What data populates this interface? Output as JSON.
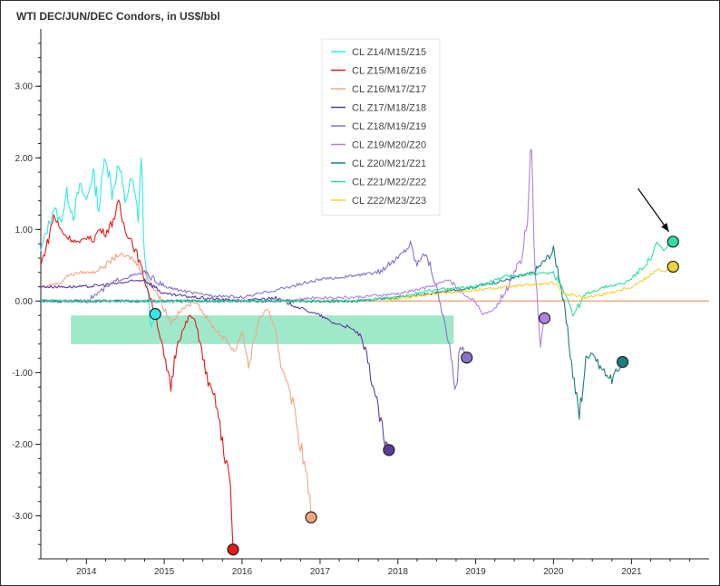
{
  "chart_data": {
    "type": "line",
    "title": "WTI DEC/JUN/DEC Condors, in US$/bbl",
    "xlabel": "",
    "ylabel": "",
    "x_range": [
      "2013-06-01",
      "2021-12-31"
    ],
    "ylim": [
      -3.6,
      3.8
    ],
    "x_ticks": [
      "2014",
      "2015",
      "2016",
      "2017",
      "2018",
      "2019",
      "2020",
      "2021"
    ],
    "y_ticks": [
      "3.00",
      "2.00",
      "1.00",
      "0.00",
      "-1.00",
      "-2.00",
      "-3.00"
    ],
    "y_tick_values": [
      3,
      2,
      1,
      0,
      -1,
      -2,
      -3
    ],
    "legend_position": "top-center",
    "grid": false,
    "zero_line_color": "#f4a582",
    "highlight_band": {
      "color": "#7fe0b8",
      "x": [
        "2013-10-20",
        "2018-09-20"
      ],
      "y": [
        -0.6,
        -0.2
      ]
    },
    "arrow": {
      "from": [
        "2021-02-01",
        1.57
      ],
      "to": [
        "2021-06-25",
        0.97
      ]
    },
    "series": [
      {
        "name": "CL Z14/M15/Z15",
        "color": "#33e8e8",
        "expiry": "2014-11-20",
        "final": -0.18,
        "points": [
          [
            "2013-06-01",
            0.7
          ],
          [
            "2013-07-01",
            1.0
          ],
          [
            "2013-08-01",
            1.3
          ],
          [
            "2013-09-01",
            1.1
          ],
          [
            "2013-10-01",
            1.5
          ],
          [
            "2013-11-01",
            1.2
          ],
          [
            "2013-12-01",
            1.6
          ],
          [
            "2014-01-01",
            1.4
          ],
          [
            "2014-02-01",
            1.8
          ],
          [
            "2014-03-01",
            1.3
          ],
          [
            "2014-04-01",
            2.1
          ],
          [
            "2014-05-01",
            1.5
          ],
          [
            "2014-06-01",
            1.9
          ],
          [
            "2014-07-01",
            1.4
          ],
          [
            "2014-08-01",
            1.7
          ],
          [
            "2014-09-01",
            1.2
          ],
          [
            "2014-09-15",
            2.0
          ],
          [
            "2014-10-01",
            0.6
          ],
          [
            "2014-10-15",
            0.2
          ],
          [
            "2014-11-01",
            -0.4
          ],
          [
            "2014-11-20",
            -0.18
          ]
        ]
      },
      {
        "name": "CL Z15/M16/Z16",
        "color": "#e41a1c",
        "expiry": "2015-11-20",
        "final": -3.47,
        "points": [
          [
            "2013-06-01",
            0.5
          ],
          [
            "2013-07-01",
            0.8
          ],
          [
            "2013-08-01",
            1.2
          ],
          [
            "2013-09-01",
            1.0
          ],
          [
            "2013-10-01",
            0.9
          ],
          [
            "2013-11-01",
            0.85
          ],
          [
            "2013-12-01",
            0.8
          ],
          [
            "2014-01-01",
            0.9
          ],
          [
            "2014-02-01",
            0.85
          ],
          [
            "2014-03-01",
            1.0
          ],
          [
            "2014-04-01",
            0.95
          ],
          [
            "2014-05-01",
            1.1
          ],
          [
            "2014-06-01",
            1.35
          ],
          [
            "2014-07-01",
            1.0
          ],
          [
            "2014-08-01",
            0.85
          ],
          [
            "2014-09-01",
            0.6
          ],
          [
            "2014-10-01",
            0.3
          ],
          [
            "2014-11-01",
            0.0
          ],
          [
            "2014-12-01",
            -0.3
          ],
          [
            "2015-01-01",
            -0.8
          ],
          [
            "2015-02-01",
            -1.2
          ],
          [
            "2015-03-01",
            -0.6
          ],
          [
            "2015-04-01",
            -0.4
          ],
          [
            "2015-05-01",
            -0.2
          ],
          [
            "2015-06-01",
            -0.3
          ],
          [
            "2015-07-01",
            -0.8
          ],
          [
            "2015-08-01",
            -1.2
          ],
          [
            "2015-09-01",
            -1.4
          ],
          [
            "2015-10-01",
            -2.0
          ],
          [
            "2015-11-01",
            -2.4
          ],
          [
            "2015-11-20",
            -3.47
          ]
        ]
      },
      {
        "name": "CL Z16/M17/Z17",
        "color": "#f4a582",
        "expiry": "2016-11-20",
        "final": -3.02,
        "points": [
          [
            "2013-06-01",
            0.2
          ],
          [
            "2013-09-01",
            0.25
          ],
          [
            "2013-10-01",
            0.35
          ],
          [
            "2013-12-01",
            0.4
          ],
          [
            "2014-02-01",
            0.4
          ],
          [
            "2014-04-01",
            0.5
          ],
          [
            "2014-06-01",
            0.65
          ],
          [
            "2014-08-01",
            0.6
          ],
          [
            "2014-10-01",
            0.4
          ],
          [
            "2014-12-01",
            0.1
          ],
          [
            "2015-02-01",
            -0.3
          ],
          [
            "2015-04-01",
            -0.1
          ],
          [
            "2015-06-01",
            0.0
          ],
          [
            "2015-08-01",
            -0.3
          ],
          [
            "2015-10-01",
            -0.5
          ],
          [
            "2015-12-01",
            -0.7
          ],
          [
            "2016-01-01",
            -0.4
          ],
          [
            "2016-02-01",
            -0.9
          ],
          [
            "2016-03-01",
            -0.5
          ],
          [
            "2016-04-01",
            -0.2
          ],
          [
            "2016-05-01",
            -0.1
          ],
          [
            "2016-06-01",
            -0.4
          ],
          [
            "2016-07-01",
            -0.9
          ],
          [
            "2016-08-01",
            -1.1
          ],
          [
            "2016-09-01",
            -1.5
          ],
          [
            "2016-10-01",
            -2.0
          ],
          [
            "2016-11-01",
            -2.5
          ],
          [
            "2016-11-20",
            -3.02
          ]
        ]
      },
      {
        "name": "CL Z17/M18/Z18",
        "color": "#5e3c99",
        "expiry": "2017-11-20",
        "final": -2.08,
        "points": [
          [
            "2013-06-01",
            0.2
          ],
          [
            "2014-01-01",
            0.2
          ],
          [
            "2014-06-01",
            0.25
          ],
          [
            "2014-10-01",
            0.3
          ],
          [
            "2015-01-01",
            0.1
          ],
          [
            "2015-06-01",
            0.05
          ],
          [
            "2016-01-01",
            0.0
          ],
          [
            "2016-06-01",
            0.05
          ],
          [
            "2016-10-01",
            -0.1
          ],
          [
            "2017-01-01",
            -0.2
          ],
          [
            "2017-03-01",
            -0.3
          ],
          [
            "2017-05-01",
            -0.35
          ],
          [
            "2017-07-01",
            -0.45
          ],
          [
            "2017-08-01",
            -0.7
          ],
          [
            "2017-09-01",
            -1.1
          ],
          [
            "2017-10-01",
            -1.5
          ],
          [
            "2017-11-01",
            -2.0
          ],
          [
            "2017-11-20",
            -2.08
          ]
        ]
      },
      {
        "name": "CL Z18/M19/Z19",
        "color": "#8a72c9",
        "expiry": "2018-11-20",
        "final": -0.79,
        "points": [
          [
            "2013-06-01",
            0.0
          ],
          [
            "2014-01-01",
            0.0
          ],
          [
            "2014-06-01",
            0.3
          ],
          [
            "2014-10-01",
            0.4
          ],
          [
            "2015-01-01",
            0.2
          ],
          [
            "2015-06-01",
            0.1
          ],
          [
            "2016-01-01",
            0.05
          ],
          [
            "2016-06-01",
            0.15
          ],
          [
            "2017-01-01",
            0.3
          ],
          [
            "2017-06-01",
            0.35
          ],
          [
            "2017-10-01",
            0.4
          ],
          [
            "2018-01-01",
            0.6
          ],
          [
            "2018-03-01",
            0.8
          ],
          [
            "2018-04-01",
            0.5
          ],
          [
            "2018-05-01",
            0.7
          ],
          [
            "2018-06-01",
            0.5
          ],
          [
            "2018-07-01",
            0.2
          ],
          [
            "2018-08-01",
            -0.2
          ],
          [
            "2018-09-01",
            -0.7
          ],
          [
            "2018-10-01",
            -1.3
          ],
          [
            "2018-10-20",
            -0.6
          ],
          [
            "2018-11-20",
            -0.79
          ]
        ]
      },
      {
        "name": "CL Z19/M20/Z20",
        "color": "#b37fe0",
        "expiry": "2019-11-20",
        "final": -0.24,
        "points": [
          [
            "2013-06-01",
            0.0
          ],
          [
            "2015-01-01",
            0.0
          ],
          [
            "2016-06-01",
            0.0
          ],
          [
            "2017-01-01",
            0.05
          ],
          [
            "2017-06-01",
            0.05
          ],
          [
            "2018-01-01",
            0.1
          ],
          [
            "2018-06-01",
            0.2
          ],
          [
            "2018-09-01",
            0.3
          ],
          [
            "2018-11-01",
            0.1
          ],
          [
            "2019-01-01",
            0.0
          ],
          [
            "2019-02-01",
            -0.2
          ],
          [
            "2019-04-01",
            -0.1
          ],
          [
            "2019-06-01",
            0.2
          ],
          [
            "2019-08-01",
            0.6
          ],
          [
            "2019-09-01",
            1.1
          ],
          [
            "2019-09-15",
            2.35
          ],
          [
            "2019-10-01",
            0.8
          ],
          [
            "2019-10-15",
            0.1
          ],
          [
            "2019-11-01",
            -0.6
          ],
          [
            "2019-11-20",
            -0.24
          ]
        ]
      },
      {
        "name": "CL Z20/M21/Z21",
        "color": "#1b7f7f",
        "expiry": "2020-11-20",
        "final": -0.85,
        "points": [
          [
            "2013-06-01",
            0.0
          ],
          [
            "2016-01-01",
            0.0
          ],
          [
            "2017-06-01",
            0.0
          ],
          [
            "2018-01-01",
            0.05
          ],
          [
            "2018-06-01",
            0.1
          ],
          [
            "2019-01-01",
            0.2
          ],
          [
            "2019-06-01",
            0.3
          ],
          [
            "2019-10-01",
            0.4
          ],
          [
            "2020-01-01",
            0.7
          ],
          [
            "2020-02-01",
            0.3
          ],
          [
            "2020-03-01",
            -0.3
          ],
          [
            "2020-04-01",
            -1.0
          ],
          [
            "2020-05-01",
            -1.6
          ],
          [
            "2020-06-01",
            -0.8
          ],
          [
            "2020-07-01",
            -0.7
          ],
          [
            "2020-08-01",
            -0.9
          ],
          [
            "2020-09-01",
            -1.0
          ],
          [
            "2020-10-01",
            -1.1
          ],
          [
            "2020-11-01",
            -0.95
          ],
          [
            "2020-11-20",
            -0.85
          ]
        ]
      },
      {
        "name": "CL Z21/M22/Z22",
        "color": "#2ee0a0",
        "expiry": "2021-07-15",
        "final": 0.83,
        "points": [
          [
            "2013-06-01",
            0.0
          ],
          [
            "2017-06-01",
            0.0
          ],
          [
            "2018-01-01",
            0.05
          ],
          [
            "2018-06-01",
            0.15
          ],
          [
            "2019-01-01",
            0.2
          ],
          [
            "2019-06-01",
            0.35
          ],
          [
            "2020-01-01",
            0.4
          ],
          [
            "2020-03-01",
            0.1
          ],
          [
            "2020-04-01",
            -0.2
          ],
          [
            "2020-06-01",
            0.1
          ],
          [
            "2020-09-01",
            0.2
          ],
          [
            "2020-12-01",
            0.25
          ],
          [
            "2021-02-01",
            0.4
          ],
          [
            "2021-04-01",
            0.6
          ],
          [
            "2021-05-01",
            0.8
          ],
          [
            "2021-06-01",
            0.7
          ],
          [
            "2021-07-15",
            0.83
          ]
        ]
      },
      {
        "name": "CL Z22/M23/Z23",
        "color": "#f2d231",
        "expiry": "2021-07-15",
        "final": 0.48,
        "points": [
          [
            "2017-11-01",
            0.0
          ],
          [
            "2018-06-01",
            0.1
          ],
          [
            "2019-01-01",
            0.15
          ],
          [
            "2019-06-01",
            0.2
          ],
          [
            "2020-01-01",
            0.25
          ],
          [
            "2020-03-01",
            0.1
          ],
          [
            "2020-06-01",
            0.05
          ],
          [
            "2020-09-01",
            0.1
          ],
          [
            "2021-01-01",
            0.2
          ],
          [
            "2021-03-01",
            0.3
          ],
          [
            "2021-05-01",
            0.45
          ],
          [
            "2021-06-01",
            0.4
          ],
          [
            "2021-07-15",
            0.48
          ]
        ]
      }
    ]
  }
}
